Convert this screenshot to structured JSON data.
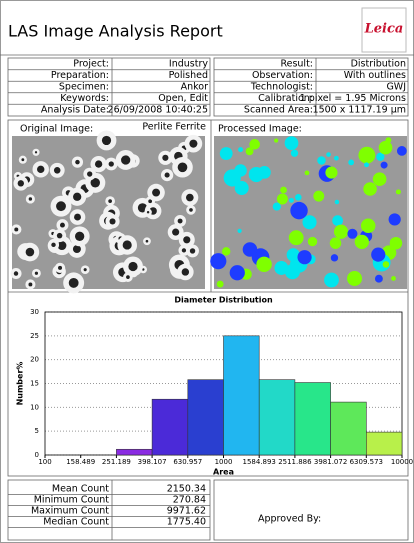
{
  "header": {
    "title": "LAS Image Analysis Report",
    "logo": "Leica"
  },
  "info": {
    "left": [
      [
        "Project:",
        "Industry"
      ],
      [
        "Preparation:",
        "Polished"
      ],
      [
        "Specimen:",
        "Ankor"
      ],
      [
        "Keywords:",
        "Open, Edit"
      ],
      [
        "Analysis Date:",
        "26/09/2008 10:40:25"
      ]
    ],
    "right": [
      [
        "Result:",
        "Distribution"
      ],
      [
        "Observation:",
        "With outlines"
      ],
      [
        "Technologist:",
        "GWJ"
      ],
      [
        "Calibration:",
        "1 pixel = 1.95 Microns"
      ],
      [
        "Scanned Area:",
        "1500 x 1117.19 µm"
      ]
    ]
  },
  "images": {
    "original": {
      "label": "Original Image:",
      "name": "Perlite Ferrite"
    },
    "processed": {
      "label": "Processed Image:"
    }
  },
  "chart_data": {
    "type": "histogram",
    "title": "Diameter Distribution",
    "x_label": "Area",
    "y_label": "Number%",
    "bins": [
      100,
      158.489,
      251.189,
      398.107,
      630.957,
      1000,
      1584.893,
      2511.886,
      3981.072,
      6309.573,
      10000
    ],
    "values": [
      0,
      0,
      1.2,
      11.7,
      15.8,
      25,
      15.8,
      15.2,
      11.1,
      4.8
    ],
    "colors": [
      "#8a2be2",
      "#7b2fe0",
      "#8a2be2",
      "#4b2ad8",
      "#2a3fd0",
      "#21b6f0",
      "#22d9c8",
      "#28e68a",
      "#5ee85a",
      "#b8f04a"
    ],
    "xscale": "log",
    "xlim": [
      100,
      10000
    ],
    "xticks": [
      100,
      158.489,
      251.189,
      398.107,
      630.957,
      1000,
      1584.893,
      2511.886,
      3981.072,
      6309.573,
      10000
    ],
    "ylim": [
      0,
      30
    ],
    "yticks": [
      0,
      5,
      10,
      15,
      20,
      25,
      30
    ],
    "grid": true
  },
  "stats": {
    "rows": [
      [
        "Mean Count",
        "2150.34"
      ],
      [
        "Minimum Count",
        "270.84"
      ],
      [
        "Maximum Count",
        "9971.62"
      ],
      [
        "Median Count",
        "1775.40"
      ]
    ],
    "approved_by": "Approved By:"
  }
}
